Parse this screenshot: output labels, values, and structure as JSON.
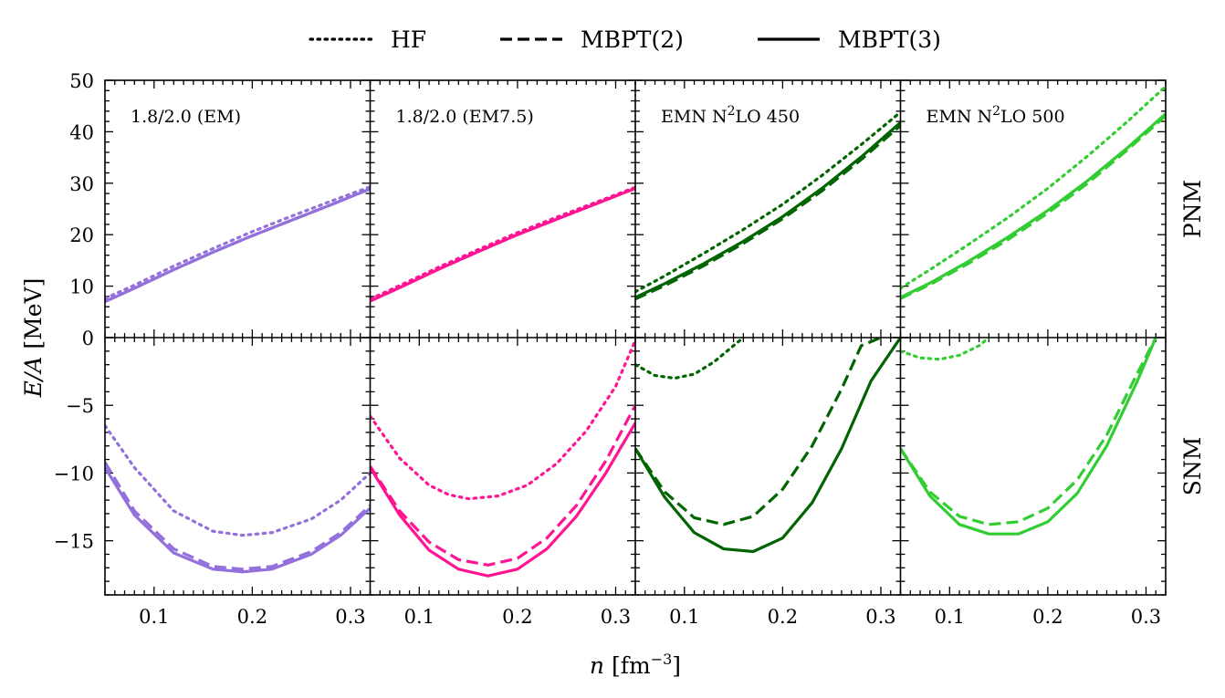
{
  "chart_data": {
    "type": "line",
    "legend": {
      "placement": "top-center",
      "entries": [
        {
          "label": "HF",
          "style": "dotted"
        },
        {
          "label": "MBPT(2)",
          "style": "dashed"
        },
        {
          "label": "MBPT(3)",
          "style": "solid"
        }
      ]
    },
    "xlabel_var": "n",
    "xlabel_unit": "[fm",
    "xlabel_exp": "−3",
    "xlabel_close": "]",
    "ylabel_var": "E/A",
    "ylabel_unit": "[MeV]",
    "xlim": [
      0.05,
      0.32
    ],
    "xticks": [
      {
        "value": 0.1,
        "label": "0.1"
      },
      {
        "value": 0.2,
        "label": "0.2"
      },
      {
        "value": 0.3,
        "label": "0.3"
      }
    ],
    "rows": [
      {
        "key": "PNM",
        "label": "PNM",
        "ylim": [
          0,
          50
        ],
        "yticks": [
          {
            "value": 0,
            "label": "0"
          },
          {
            "value": 10,
            "label": "10"
          },
          {
            "value": 20,
            "label": "20"
          },
          {
            "value": 30,
            "label": "30"
          },
          {
            "value": 40,
            "label": "40"
          },
          {
            "value": 50,
            "label": "50"
          }
        ]
      },
      {
        "key": "SNM",
        "label": "SNM",
        "ylim": [
          -19,
          0
        ],
        "yticks": [
          {
            "value": -5,
            "label": "−5"
          },
          {
            "value": -10,
            "label": "−10"
          },
          {
            "value": -15,
            "label": "−15"
          }
        ]
      }
    ],
    "panels": [
      {
        "title": "1.8/2.0 (EM)",
        "title_sup": "",
        "title_post": "",
        "color": "#9370db",
        "PNM": {
          "HF": {
            "x": [
              0.05,
              0.08,
              0.12,
              0.16,
              0.2,
              0.24,
              0.28,
              0.32
            ],
            "y": [
              7.6,
              10.2,
              13.9,
              17.3,
              20.6,
              23.6,
              26.5,
              29.3
            ]
          },
          "MBPT(2)": {
            "x": [
              0.05,
              0.08,
              0.12,
              0.16,
              0.2,
              0.24,
              0.28,
              0.32
            ],
            "y": [
              7.0,
              9.6,
              13.2,
              16.6,
              19.8,
              22.8,
              25.8,
              28.9
            ]
          },
          "MBPT(3)": {
            "x": [
              0.05,
              0.08,
              0.12,
              0.16,
              0.2,
              0.24,
              0.28,
              0.32
            ],
            "y": [
              7.0,
              9.6,
              13.2,
              16.6,
              19.8,
              22.8,
              25.8,
              28.9
            ]
          }
        },
        "SNM": {
          "HF": {
            "x": [
              0.05,
              0.08,
              0.12,
              0.16,
              0.19,
              0.22,
              0.26,
              0.29,
              0.32
            ],
            "y": [
              -6.5,
              -9.6,
              -12.8,
              -14.3,
              -14.6,
              -14.4,
              -13.4,
              -12.0,
              -10.0
            ]
          },
          "MBPT(2)": {
            "x": [
              0.05,
              0.08,
              0.12,
              0.16,
              0.19,
              0.22,
              0.26,
              0.29,
              0.32
            ],
            "y": [
              -9.2,
              -12.8,
              -15.6,
              -16.9,
              -17.1,
              -16.9,
              -15.8,
              -14.4,
              -12.4
            ]
          },
          "MBPT(3)": {
            "x": [
              0.05,
              0.08,
              0.12,
              0.16,
              0.19,
              0.22,
              0.26,
              0.29,
              0.32
            ],
            "y": [
              -9.6,
              -13.1,
              -15.9,
              -17.1,
              -17.3,
              -17.1,
              -16.0,
              -14.6,
              -12.6
            ]
          }
        }
      },
      {
        "title": "1.8/2.0 (EM7.5)",
        "title_sup": "",
        "title_post": "",
        "color": "#ff1493",
        "PNM": {
          "HF": {
            "x": [
              0.05,
              0.08,
              0.12,
              0.16,
              0.2,
              0.24,
              0.28,
              0.32
            ],
            "y": [
              7.5,
              10.1,
              13.7,
              17.1,
              20.4,
              23.4,
              26.3,
              29.2
            ]
          },
          "MBPT(2)": {
            "x": [
              0.05,
              0.08,
              0.12,
              0.16,
              0.2,
              0.24,
              0.28,
              0.32
            ],
            "y": [
              7.1,
              9.7,
              13.3,
              16.7,
              20.0,
              23.0,
              26.0,
              29.0
            ]
          },
          "MBPT(3)": {
            "x": [
              0.05,
              0.08,
              0.12,
              0.16,
              0.2,
              0.24,
              0.28,
              0.32
            ],
            "y": [
              7.1,
              9.7,
              13.3,
              16.7,
              20.0,
              23.0,
              26.0,
              29.0
            ]
          }
        },
        "SNM": {
          "HF": {
            "x": [
              0.05,
              0.08,
              0.11,
              0.13,
              0.15,
              0.18,
              0.21,
              0.24,
              0.27,
              0.3,
              0.32
            ],
            "y": [
              -5.8,
              -8.9,
              -10.9,
              -11.6,
              -11.9,
              -11.7,
              -10.9,
              -9.3,
              -6.9,
              -3.6,
              -0.2
            ]
          },
          "MBPT(2)": {
            "x": [
              0.05,
              0.08,
              0.11,
              0.14,
              0.17,
              0.2,
              0.23,
              0.26,
              0.29,
              0.32
            ],
            "y": [
              -9.5,
              -12.8,
              -15.1,
              -16.4,
              -16.8,
              -16.3,
              -14.8,
              -12.4,
              -9.1,
              -5.0
            ]
          },
          "MBPT(3)": {
            "x": [
              0.05,
              0.08,
              0.11,
              0.14,
              0.17,
              0.2,
              0.23,
              0.26,
              0.29,
              0.32
            ],
            "y": [
              -9.6,
              -13.1,
              -15.7,
              -17.1,
              -17.6,
              -17.1,
              -15.6,
              -13.2,
              -10.0,
              -6.3
            ]
          }
        }
      },
      {
        "title": "EMN N",
        "title_sup": "2",
        "title_post": "LO 450",
        "color": "#006400",
        "PNM": {
          "HF": {
            "x": [
              0.05,
              0.08,
              0.12,
              0.16,
              0.2,
              0.24,
              0.28,
              0.32
            ],
            "y": [
              8.9,
              12.0,
              16.4,
              21.0,
              25.9,
              31.5,
              37.5,
              43.8
            ]
          },
          "MBPT(2)": {
            "x": [
              0.05,
              0.08,
              0.12,
              0.16,
              0.2,
              0.24,
              0.28,
              0.32
            ],
            "y": [
              7.5,
              10.1,
              14.0,
              18.3,
              23.1,
              28.5,
              34.6,
              41.2
            ]
          },
          "MBPT(3)": {
            "x": [
              0.05,
              0.08,
              0.12,
              0.16,
              0.2,
              0.24,
              0.28,
              0.32
            ],
            "y": [
              7.8,
              10.5,
              14.4,
              18.7,
              23.5,
              29.0,
              35.1,
              41.8
            ]
          }
        },
        "SNM": {
          "HF": {
            "x": [
              0.05,
              0.07,
              0.09,
              0.11,
              0.13,
              0.15,
              0.16
            ],
            "y": [
              -2.0,
              -2.8,
              -3.0,
              -2.7,
              -1.8,
              -0.6,
              0.0
            ]
          },
          "MBPT(2)": {
            "x": [
              0.05,
              0.08,
              0.11,
              0.14,
              0.17,
              0.2,
              0.23,
              0.26,
              0.28,
              0.3
            ],
            "y": [
              -8.2,
              -11.4,
              -13.3,
              -13.8,
              -13.2,
              -11.2,
              -8.0,
              -3.8,
              -0.6,
              0.0
            ]
          },
          "MBPT(3)": {
            "x": [
              0.05,
              0.08,
              0.11,
              0.14,
              0.17,
              0.2,
              0.23,
              0.26,
              0.29,
              0.32
            ],
            "y": [
              -8.2,
              -11.8,
              -14.4,
              -15.6,
              -15.8,
              -14.8,
              -12.2,
              -8.2,
              -3.2,
              0.0
            ]
          }
        }
      },
      {
        "title": "EMN N",
        "title_sup": "2",
        "title_post": "LO 500",
        "color": "#32cd32",
        "PNM": {
          "HF": {
            "x": [
              0.05,
              0.08,
              0.12,
              0.16,
              0.2,
              0.24,
              0.28,
              0.32
            ],
            "y": [
              9.6,
              13.2,
              18.2,
              23.4,
              29.0,
              35.2,
              41.8,
              48.8
            ]
          },
          "MBPT(2)": {
            "x": [
              0.05,
              0.08,
              0.12,
              0.16,
              0.2,
              0.24,
              0.28,
              0.32
            ],
            "y": [
              7.6,
              10.3,
              14.5,
              19.1,
              24.2,
              29.9,
              36.3,
              43.1
            ]
          },
          "MBPT(3)": {
            "x": [
              0.05,
              0.08,
              0.12,
              0.16,
              0.2,
              0.24,
              0.28,
              0.32
            ],
            "y": [
              7.8,
              10.6,
              14.9,
              19.6,
              24.7,
              30.4,
              36.7,
              43.5
            ]
          }
        },
        "SNM": {
          "HF": {
            "x": [
              0.05,
              0.07,
              0.09,
              0.11,
              0.13,
              0.14
            ],
            "y": [
              -1.0,
              -1.5,
              -1.6,
              -1.3,
              -0.6,
              0.0
            ]
          },
          "MBPT(2)": {
            "x": [
              0.05,
              0.08,
              0.11,
              0.14,
              0.17,
              0.2,
              0.23,
              0.26,
              0.29,
              0.31
            ],
            "y": [
              -8.2,
              -11.4,
              -13.2,
              -13.8,
              -13.6,
              -12.6,
              -10.5,
              -7.2,
              -2.8,
              0.0
            ]
          },
          "MBPT(3)": {
            "x": [
              0.05,
              0.08,
              0.11,
              0.14,
              0.17,
              0.2,
              0.23,
              0.26,
              0.29,
              0.31
            ],
            "y": [
              -8.2,
              -11.7,
              -13.8,
              -14.5,
              -14.5,
              -13.6,
              -11.5,
              -8.0,
              -3.4,
              0.0
            ]
          }
        }
      }
    ]
  }
}
